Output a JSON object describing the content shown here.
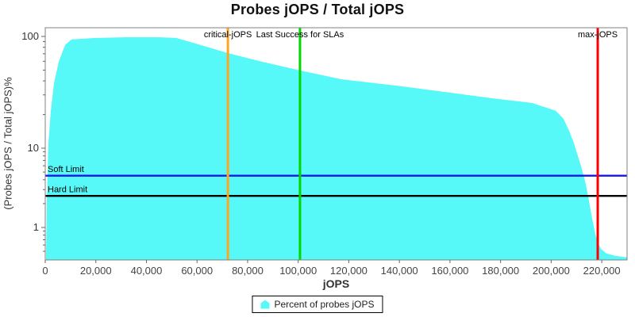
{
  "title": "Probes jOPS / Total jOPS",
  "axes": {
    "x_title": "jOPS",
    "y_title": "(Probes jOPS / Total jOPS)%"
  },
  "legend": {
    "label": "Percent of probes jOPS",
    "marker_icon": "area-swatch",
    "marker_color": "#57F8F8"
  },
  "chart_data": {
    "type": "area",
    "title": "Probes jOPS / Total jOPS",
    "xlabel": "jOPS",
    "ylabel": "(Probes jOPS / Total jOPS)%",
    "x_scale": "linear",
    "y_scale": "log",
    "xlim": [
      0,
      230000
    ],
    "ylim": [
      0.4,
      120
    ],
    "grid": false,
    "legend_position": "bottom-center",
    "colors": {
      "area_fill": "#57F8F8",
      "plot_border": "#808080",
      "tick_mark": "#666666",
      "tick_label": "#444444",
      "annotation_text": "#000000"
    },
    "x_ticks": [
      {
        "value": 0,
        "label": "0"
      },
      {
        "value": 20000,
        "label": "20,000"
      },
      {
        "value": 40000,
        "label": "40,000"
      },
      {
        "value": 60000,
        "label": "60,000"
      },
      {
        "value": 80000,
        "label": "80,000"
      },
      {
        "value": 100000,
        "label": "100,000"
      },
      {
        "value": 120000,
        "label": "120,000"
      },
      {
        "value": 140000,
        "label": "140,000"
      },
      {
        "value": 160000,
        "label": "160,000"
      },
      {
        "value": 180000,
        "label": "180,000"
      },
      {
        "value": 200000,
        "label": "200,000"
      },
      {
        "value": 220000,
        "label": "220,000"
      }
    ],
    "y_ticks": [
      {
        "value": 100,
        "label": "100"
      },
      {
        "value": 10,
        "label": "10"
      },
      {
        "value": 1,
        "label": "1"
      }
    ],
    "y_minor_ticks": [
      90,
      80,
      70,
      60,
      50,
      40,
      30,
      20,
      9,
      8,
      7,
      6,
      5,
      4,
      3,
      2,
      0.9,
      0.8,
      0.7,
      0.6,
      0.5
    ],
    "series": [
      {
        "name": "Percent of probes jOPS",
        "color": "#57F8F8",
        "points": [
          [
            300,
            0.41
          ],
          [
            630,
            2.3
          ],
          [
            1250,
            11.2
          ],
          [
            2200,
            21.5
          ],
          [
            3450,
            38
          ],
          [
            5300,
            59
          ],
          [
            7850,
            84
          ],
          [
            10400,
            94
          ],
          [
            19800,
            97
          ],
          [
            32300,
            98.4
          ],
          [
            44900,
            98.4
          ],
          [
            51800,
            97
          ],
          [
            60600,
            85
          ],
          [
            72200,
            71
          ],
          [
            85700,
            59.4
          ],
          [
            100700,
            49.6
          ],
          [
            117000,
            41.4
          ],
          [
            139000,
            36.3
          ],
          [
            157800,
            31.9
          ],
          [
            176700,
            28
          ],
          [
            192400,
            25.4
          ],
          [
            201800,
            21.6
          ],
          [
            204900,
            18.3
          ],
          [
            206800,
            14.8
          ],
          [
            208700,
            11.6
          ],
          [
            210500,
            8.1
          ],
          [
            212100,
            5.5
          ],
          [
            213700,
            3.5
          ],
          [
            214900,
            2.2
          ],
          [
            216200,
            1.3
          ],
          [
            217500,
            0.81
          ],
          [
            218400,
            0.65
          ],
          [
            219600,
            0.54
          ],
          [
            221800,
            0.47
          ],
          [
            225300,
            0.44
          ],
          [
            230000,
            0.42
          ]
        ]
      }
    ],
    "markers": {
      "vertical": [
        {
          "label": "critical-jOPS",
          "jops": 72200,
          "color": "#FFA520"
        },
        {
          "label": "Last Success for SLAs",
          "jops": 100700,
          "color": "#00D800"
        },
        {
          "label": "max-jOPS",
          "jops": 218400,
          "color": "#FF0000"
        }
      ],
      "horizontal": [
        {
          "label": "Soft Limit",
          "percent": 4.5,
          "color": "#1515EE"
        },
        {
          "label": "Hard Limit",
          "percent": 2.5,
          "color": "#000000"
        }
      ]
    }
  }
}
